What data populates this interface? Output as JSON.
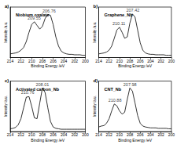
{
  "chart_data": [
    {
      "type": "line",
      "subtitle": "a)",
      "title": "Niobium oxalate",
      "x_label": "Binding Energy /eV",
      "y_label": "Intensity /a.u.",
      "x": [
        214,
        213.5,
        213,
        212.5,
        212,
        211.5,
        211,
        210.5,
        210,
        209.5,
        209,
        208.5,
        208,
        207.5,
        207,
        206.5,
        206,
        205.5,
        205,
        204.5,
        204,
        203.5,
        203,
        202.5,
        202,
        201.5,
        201,
        200.5,
        200
      ],
      "values": [
        0.08,
        0.09,
        0.1,
        0.12,
        0.16,
        0.22,
        0.35,
        0.55,
        0.72,
        0.78,
        0.7,
        0.62,
        0.68,
        0.85,
        0.94,
        0.92,
        0.72,
        0.45,
        0.25,
        0.14,
        0.1,
        0.08,
        0.07,
        0.07,
        0.06,
        0.06,
        0.06,
        0.05,
        0.05
      ],
      "color": "#000000",
      "xlim": [
        214,
        200
      ],
      "xticks": [
        214,
        212,
        210,
        208,
        206,
        204,
        202,
        200
      ],
      "ylim": [
        0,
        1.1
      ],
      "tick_labels": "x",
      "annotations": [
        {
          "text": "209.55",
          "x": 209.55,
          "y": 0.86
        },
        {
          "text": "206.76",
          "x": 206.76,
          "y": 1.02
        }
      ]
    },
    {
      "type": "line",
      "subtitle": "b)",
      "title": "Graphene_Nb",
      "x_label": "Binding Energy /eV",
      "y_label": "Intensity /a.u.",
      "x": [
        214,
        213.5,
        213,
        212.5,
        212,
        211.5,
        211,
        210.5,
        210,
        209.5,
        209,
        208.5,
        208,
        207.5,
        207,
        206.5,
        206,
        205.5,
        205,
        204.5,
        204,
        203.5,
        203,
        202.5,
        202,
        201.5,
        201,
        200.5,
        200
      ],
      "values": [
        0.08,
        0.09,
        0.1,
        0.12,
        0.16,
        0.25,
        0.42,
        0.6,
        0.66,
        0.55,
        0.42,
        0.45,
        0.75,
        0.95,
        0.88,
        0.6,
        0.32,
        0.16,
        0.1,
        0.08,
        0.07,
        0.07,
        0.06,
        0.06,
        0.06,
        0.06,
        0.05,
        0.05,
        0.05
      ],
      "color": "#000000",
      "xlim": [
        214,
        200
      ],
      "xticks": [
        214,
        212,
        210,
        208,
        206,
        204,
        202,
        200
      ],
      "ylim": [
        0,
        1.1
      ],
      "tick_labels": "x",
      "annotations": [
        {
          "text": "210.11",
          "x": 210.11,
          "y": 0.74
        },
        {
          "text": "207.42",
          "x": 207.42,
          "y": 1.03
        }
      ]
    },
    {
      "type": "line",
      "subtitle": "c)",
      "title": "Activated carbon_Nb",
      "x_label": "Binding Energy /eV",
      "y_label": "Intensity /a.u.",
      "x": [
        214,
        213.5,
        213,
        212.5,
        212,
        211.5,
        211,
        210.5,
        210,
        209.5,
        209,
        208.5,
        208,
        207.5,
        207,
        206.5,
        206,
        205.5,
        205,
        204.5,
        204,
        203.5,
        203,
        202.5,
        202,
        201.5,
        201,
        200.5,
        200
      ],
      "values": [
        0.06,
        0.07,
        0.09,
        0.15,
        0.28,
        0.52,
        0.75,
        0.76,
        0.55,
        0.3,
        0.28,
        0.62,
        0.95,
        0.85,
        0.52,
        0.22,
        0.1,
        0.07,
        0.06,
        0.05,
        0.05,
        0.05,
        0.05,
        0.05,
        0.05,
        0.05,
        0.05,
        0.05,
        0.05
      ],
      "color": "#000000",
      "xlim": [
        214,
        200
      ],
      "xticks": [
        214,
        212,
        210,
        208,
        206,
        204,
        202,
        200
      ],
      "ylim": [
        0,
        1.1
      ],
      "tick_labels": "x",
      "annotations": [
        {
          "text": "210.76",
          "x": 210.76,
          "y": 0.85
        },
        {
          "text": "208.01",
          "x": 208.01,
          "y": 1.03
        }
      ]
    },
    {
      "type": "line",
      "subtitle": "d)",
      "title": "CNT_Nb",
      "x_label": "Binding Energy /eV",
      "y_label": "Intensity /a.u.",
      "x": [
        214,
        213.5,
        213,
        212.5,
        212,
        211.5,
        211,
        210.5,
        210,
        209.5,
        209,
        208.5,
        208,
        207.5,
        207,
        206.5,
        206,
        205.5,
        205,
        204.5,
        204,
        203.5,
        203,
        202.5,
        202,
        201.5,
        201,
        200.5,
        200
      ],
      "values": [
        0.1,
        0.12,
        0.13,
        0.18,
        0.28,
        0.45,
        0.6,
        0.56,
        0.45,
        0.38,
        0.42,
        0.7,
        0.95,
        0.88,
        0.62,
        0.35,
        0.18,
        0.12,
        0.1,
        0.09,
        0.08,
        0.08,
        0.08,
        0.07,
        0.07,
        0.07,
        0.07,
        0.06,
        0.06
      ],
      "color": "#000000",
      "xlim": [
        214,
        200
      ],
      "xticks": [
        214,
        212,
        210,
        208,
        206,
        204,
        202,
        200
      ],
      "ylim": [
        0,
        1.1
      ],
      "tick_labels": "x",
      "annotations": [
        {
          "text": "210.88",
          "x": 210.88,
          "y": 0.69
        },
        {
          "text": "207.98",
          "x": 207.98,
          "y": 1.03
        }
      ]
    }
  ]
}
